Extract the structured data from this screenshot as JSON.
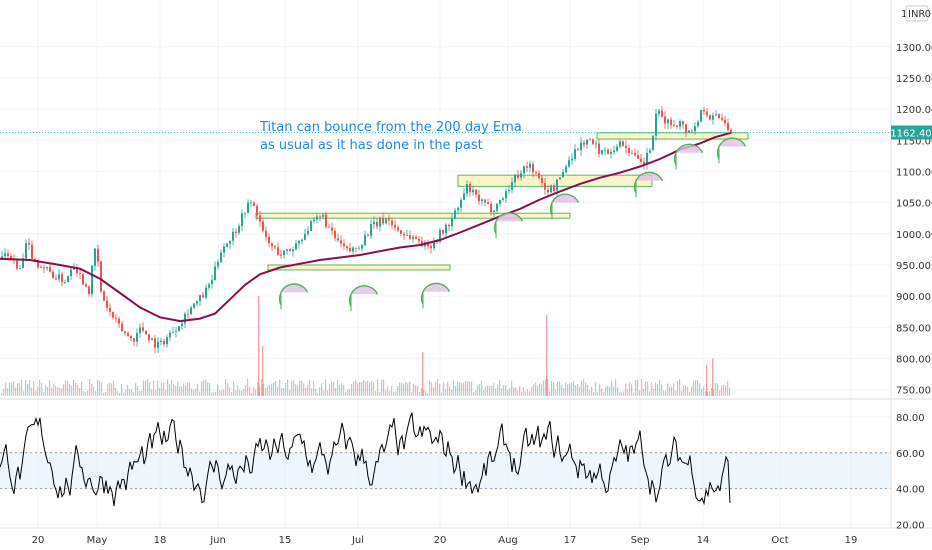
{
  "header": {
    "scale_label": "1",
    "currency_label": "INR",
    "currency_suffix": "0"
  },
  "annotation": {
    "line1": "Titan can bounce from the 200 day Ema",
    "line2": "as usual as it has done in the past"
  },
  "colors": {
    "up": "#26a69a",
    "down": "#ef5350",
    "ema": "#880e4f",
    "zone_fill": "#fff3c4",
    "zone_stroke": "#4caf50",
    "marker_fill": "#e1bee7",
    "marker_stroke": "#4caf50",
    "price_line": "#26c6da",
    "price_tag": "#26a69a",
    "rsi_line": "#000000",
    "rsi_band": "#e3f2fd",
    "annotation": "#1e88e5"
  },
  "chart_data": [
    {
      "type": "candlestick",
      "title": "",
      "ylim": [
        735,
        1375
      ],
      "y_ticks": [
        "1300.00",
        "1250.00",
        "1200.00",
        "1150.00",
        "1100.00",
        "1050.00",
        "1000.00",
        "950.00",
        "900.00",
        "850.00",
        "800.00",
        "750.00"
      ],
      "last_price": "1162.40",
      "x_ticks": [
        "20",
        "May",
        "18",
        "Jun",
        "15",
        "Jul",
        "20",
        "Aug",
        "17",
        "Sep",
        "14",
        "Oct",
        "19"
      ],
      "price_path": [
        [
          0,
          960
        ],
        [
          10,
          965
        ],
        [
          18,
          935
        ],
        [
          26,
          985
        ],
        [
          34,
          955
        ],
        [
          44,
          945
        ],
        [
          55,
          930
        ],
        [
          65,
          925
        ],
        [
          72,
          955
        ],
        [
          80,
          930
        ],
        [
          88,
          910
        ],
        [
          95,
          985
        ],
        [
          100,
          905
        ],
        [
          108,
          875
        ],
        [
          116,
          855
        ],
        [
          124,
          840
        ],
        [
          132,
          830
        ],
        [
          140,
          850
        ],
        [
          148,
          835
        ],
        [
          156,
          820
        ],
        [
          164,
          830
        ],
        [
          172,
          845
        ],
        [
          180,
          860
        ],
        [
          188,
          880
        ],
        [
          196,
          890
        ],
        [
          204,
          905
        ],
        [
          212,
          930
        ],
        [
          220,
          975
        ],
        [
          228,
          990
        ],
        [
          236,
          1010
        ],
        [
          244,
          1040
        ],
        [
          250,
          1050
        ],
        [
          256,
          1035
        ],
        [
          262,
          1000
        ],
        [
          270,
          980
        ],
        [
          280,
          968
        ],
        [
          288,
          972
        ],
        [
          296,
          985
        ],
        [
          305,
          1005
        ],
        [
          314,
          1020
        ],
        [
          322,
          1028
        ],
        [
          330,
          1000
        ],
        [
          338,
          985
        ],
        [
          346,
          972
        ],
        [
          354,
          975
        ],
        [
          362,
          990
        ],
        [
          370,
          1010
        ],
        [
          378,
          1018
        ],
        [
          386,
          1025
        ],
        [
          394,
          1010
        ],
        [
          402,
          1000
        ],
        [
          410,
          995
        ],
        [
          418,
          990
        ],
        [
          426,
          978
        ],
        [
          434,
          990
        ],
        [
          442,
          1005
        ],
        [
          450,
          1020
        ],
        [
          458,
          1045
        ],
        [
          466,
          1075
        ],
        [
          474,
          1060
        ],
        [
          482,
          1048
        ],
        [
          490,
          1040
        ],
        [
          498,
          1050
        ],
        [
          506,
          1070
        ],
        [
          514,
          1090
        ],
        [
          522,
          1105
        ],
        [
          530,
          1110
        ],
        [
          538,
          1085
        ],
        [
          546,
          1070
        ],
        [
          554,
          1075
        ],
        [
          562,
          1100
        ],
        [
          570,
          1125
        ],
        [
          578,
          1140
        ],
        [
          586,
          1152
        ],
        [
          594,
          1140
        ],
        [
          602,
          1130
        ],
        [
          610,
          1135
        ],
        [
          618,
          1145
        ],
        [
          626,
          1140
        ],
        [
          634,
          1120
        ],
        [
          642,
          1110
        ],
        [
          650,
          1140
        ],
        [
          656,
          1195
        ],
        [
          662,
          1185
        ],
        [
          670,
          1175
        ],
        [
          678,
          1180
        ],
        [
          686,
          1165
        ],
        [
          694,
          1170
        ],
        [
          702,
          1205
        ],
        [
          710,
          1185
        ],
        [
          718,
          1190
        ],
        [
          726,
          1175
        ],
        [
          731,
          1162
        ]
      ],
      "ema_path": [
        [
          0,
          960
        ],
        [
          30,
          958
        ],
        [
          60,
          950
        ],
        [
          80,
          944
        ],
        [
          100,
          928
        ],
        [
          120,
          905
        ],
        [
          140,
          882
        ],
        [
          160,
          866
        ],
        [
          180,
          860
        ],
        [
          200,
          864
        ],
        [
          215,
          872
        ],
        [
          230,
          895
        ],
        [
          245,
          918
        ],
        [
          260,
          935
        ],
        [
          280,
          946
        ],
        [
          300,
          952
        ],
        [
          320,
          958
        ],
        [
          340,
          962
        ],
        [
          360,
          966
        ],
        [
          380,
          972
        ],
        [
          400,
          978
        ],
        [
          420,
          982
        ],
        [
          440,
          990
        ],
        [
          460,
          1002
        ],
        [
          480,
          1015
        ],
        [
          500,
          1028
        ],
        [
          520,
          1040
        ],
        [
          540,
          1055
        ],
        [
          560,
          1068
        ],
        [
          580,
          1080
        ],
        [
          600,
          1090
        ],
        [
          620,
          1098
        ],
        [
          640,
          1108
        ],
        [
          660,
          1120
        ],
        [
          680,
          1135
        ],
        [
          700,
          1145
        ],
        [
          715,
          1155
        ],
        [
          731,
          1162
        ]
      ],
      "zones": [
        {
          "x1": 256,
          "x2": 570,
          "y1": 1025,
          "y2": 1033
        },
        {
          "x1": 268,
          "x2": 450,
          "y1": 942,
          "y2": 950
        },
        {
          "x1": 458,
          "x2": 652,
          "y1": 1076,
          "y2": 1094
        },
        {
          "x1": 597,
          "x2": 748,
          "y1": 1152,
          "y2": 1162
        }
      ],
      "markers": [
        [
          295,
          906
        ],
        [
          365,
          903
        ],
        [
          437,
          907
        ],
        [
          510,
          1020
        ],
        [
          566,
          1050
        ],
        [
          650,
          1085
        ],
        [
          690,
          1130
        ],
        [
          733,
          1140
        ]
      ],
      "volume_spikes": [
        [
          258,
          900
        ],
        [
          262,
          820
        ],
        [
          422,
          810
        ],
        [
          546,
          870
        ],
        [
          706,
          790
        ],
        [
          712,
          800
        ]
      ]
    },
    {
      "type": "line",
      "title": "",
      "ylim": [
        18,
        90
      ],
      "y_ticks": [
        "80.00",
        "60.00",
        "40.00",
        "20.00"
      ],
      "band": [
        40,
        60
      ]
    }
  ]
}
